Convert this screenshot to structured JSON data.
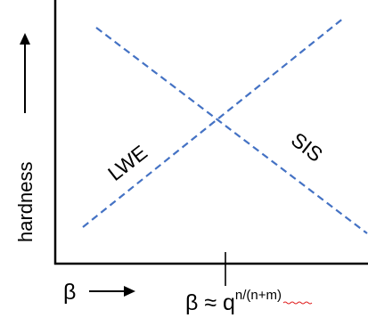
{
  "diagram": {
    "y_axis_label": "hardness",
    "x_axis_label": "β",
    "crossover_label": {
      "base": "β ≈ q",
      "exponent_prefix": "n/",
      "exponent_underlined": "(n+m)"
    },
    "lines": [
      {
        "name": "LWE",
        "label": "LWE",
        "trend": "increasing"
      },
      {
        "name": "SIS",
        "label": "SIS",
        "trend": "decreasing"
      }
    ],
    "colors": {
      "axis": "#000000",
      "lines": "#4472c4",
      "spellcheck_underline": "#e02020"
    }
  }
}
